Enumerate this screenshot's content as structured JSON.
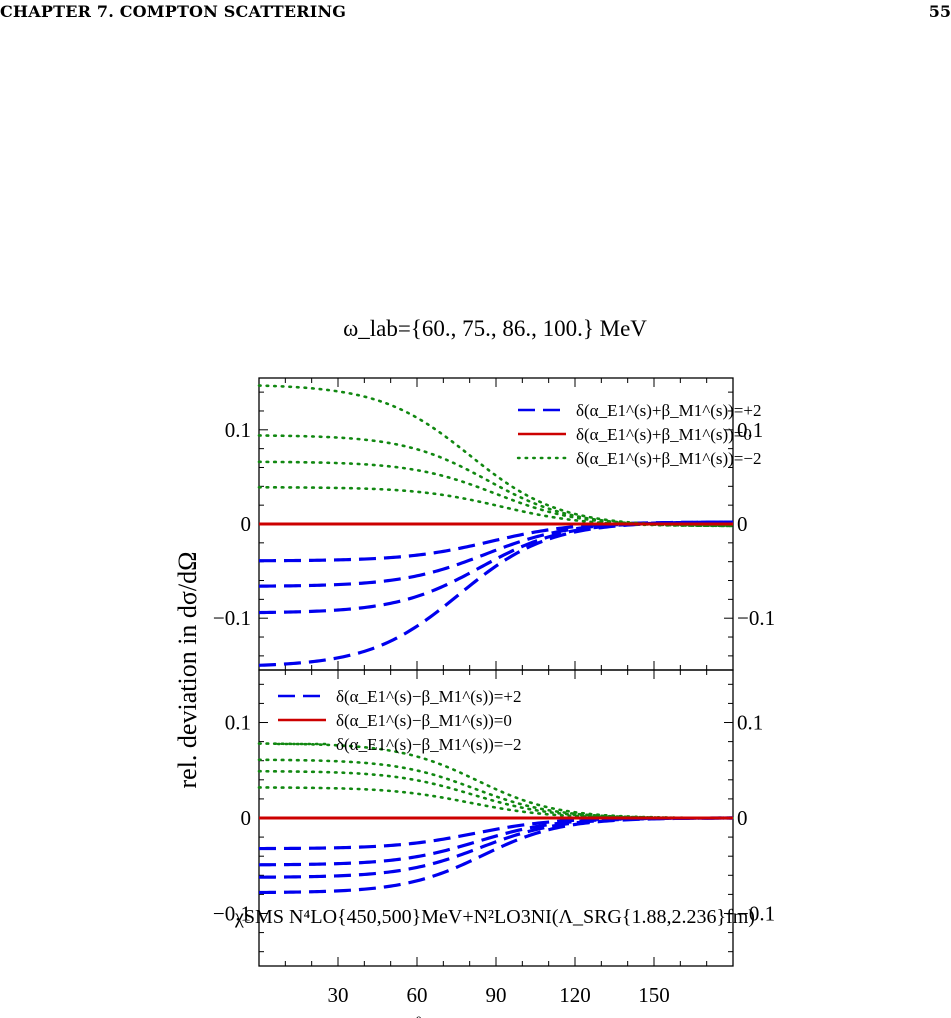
{
  "page_header": {
    "chapter": "CHAPTER 7.  COMPTON SCATTERING",
    "page_number": "55"
  },
  "figure": {
    "title": "ω_lab={60., 75., 86., 100.} MeV",
    "ylabel": "rel. deviation in dσ/dΩ",
    "xlabel_partial": "θ",
    "model_label": "χSMS N⁴LO{450,500}MeV+N²LO3NI(Λ_SRG{1.88,2.236}fm)"
  },
  "chart_data": [
    {
      "type": "line",
      "panel": "top",
      "xlim": [
        0,
        180
      ],
      "ylim": [
        -0.155,
        0.155
      ],
      "yticks": [
        -0.1,
        0,
        0.1
      ],
      "ytick_labels": [
        "−0.1",
        "0",
        "0.1"
      ],
      "legend_position": "top-right",
      "legend": [
        {
          "label": "δ(α_E1^(s)+β_M1^(s))=+2",
          "style": "dashed",
          "color": "#0000ee"
        },
        {
          "label": "δ(α_E1^(s)+β_M1^(s))=0",
          "style": "solid",
          "color": "#cc0000"
        },
        {
          "label": "δ(α_E1^(s)+β_M1^(s))=−2",
          "style": "dotted",
          "color": "#118811"
        }
      ],
      "series": [
        {
          "group": "plus2",
          "energy": "60.",
          "style": "dashed",
          "plateau": -0.039,
          "center": 88,
          "width": 16,
          "tail": 0.002
        },
        {
          "group": "plus2",
          "energy": "75.",
          "style": "dashed",
          "plateau": -0.066,
          "center": 86,
          "width": 16,
          "tail": 0.002
        },
        {
          "group": "plus2",
          "energy": "86.",
          "style": "dashed",
          "plateau": -0.094,
          "center": 84,
          "width": 16,
          "tail": 0.002
        },
        {
          "group": "plus2",
          "energy": "100.",
          "style": "dashed",
          "plateau": -0.15,
          "center": 76,
          "width": 17,
          "tail": 0.002
        },
        {
          "group": "zero",
          "energy": "",
          "style": "solid",
          "plateau": 0,
          "center": 90,
          "width": 10,
          "tail": 0
        },
        {
          "group": "minus2",
          "energy": "60.",
          "style": "dotted",
          "plateau": 0.039,
          "center": 92,
          "width": 16,
          "tail": -0.002
        },
        {
          "group": "minus2",
          "energy": "75.",
          "style": "dotted",
          "plateau": 0.066,
          "center": 90,
          "width": 16,
          "tail": -0.002
        },
        {
          "group": "minus2",
          "energy": "86.",
          "style": "dotted",
          "plateau": 0.094,
          "center": 87,
          "width": 16,
          "tail": -0.002
        },
        {
          "group": "minus2",
          "energy": "100.",
          "style": "dotted",
          "plateau": 0.147,
          "center": 80,
          "width": 17,
          "tail": -0.002
        }
      ]
    },
    {
      "type": "line",
      "panel": "bottom",
      "xlim": [
        0,
        180
      ],
      "ylim": [
        -0.155,
        0.155
      ],
      "xticks": [
        30,
        60,
        90,
        120,
        150
      ],
      "xtick_labels": [
        "30",
        "60",
        "90",
        "120",
        "150"
      ],
      "yticks": [
        -0.1,
        0,
        0.1
      ],
      "ytick_labels": [
        "−0.1",
        "0",
        "0.1"
      ],
      "legend_position": "top-left",
      "legend": [
        {
          "label": "δ(α_E1^(s)−β_M1^(s))=+2",
          "style": "dashed",
          "color": "#0000ee"
        },
        {
          "label": "δ(α_E1^(s)−β_M1^(s))=0",
          "style": "solid",
          "color": "#cc0000"
        },
        {
          "label": "δ(α_E1^(s)−β_M1^(s))=−2",
          "style": "dotted",
          "color": "#118811"
        }
      ],
      "series": [
        {
          "group": "plus2",
          "energy": "60.",
          "style": "dashed",
          "plateau": -0.032,
          "center": 82,
          "width": 15,
          "tail": 0
        },
        {
          "group": "plus2",
          "energy": "75.",
          "style": "dashed",
          "plateau": -0.049,
          "center": 83,
          "width": 15,
          "tail": 0
        },
        {
          "group": "plus2",
          "energy": "86.",
          "style": "dashed",
          "plateau": -0.062,
          "center": 84,
          "width": 15,
          "tail": 0
        },
        {
          "group": "plus2",
          "energy": "100.",
          "style": "dashed",
          "plateau": -0.078,
          "center": 85,
          "width": 15,
          "tail": 0
        },
        {
          "group": "zero",
          "energy": "",
          "style": "solid",
          "plateau": 0,
          "center": 90,
          "width": 10,
          "tail": 0
        },
        {
          "group": "minus2",
          "energy": "60.",
          "style": "dotted",
          "plateau": 0.032,
          "center": 80,
          "width": 15,
          "tail": 0
        },
        {
          "group": "minus2",
          "energy": "75.",
          "style": "dotted",
          "plateau": 0.049,
          "center": 81,
          "width": 15,
          "tail": 0
        },
        {
          "group": "minus2",
          "energy": "86.",
          "style": "dotted",
          "plateau": 0.061,
          "center": 82,
          "width": 15,
          "tail": 0
        },
        {
          "group": "minus2",
          "energy": "100.",
          "style": "dotted",
          "plateau": 0.078,
          "center": 83,
          "width": 15,
          "tail": 0
        }
      ]
    }
  ],
  "colors": {
    "plus2": "#0000ee",
    "zero": "#cc0000",
    "minus2": "#118811",
    "frame": "#000000"
  }
}
